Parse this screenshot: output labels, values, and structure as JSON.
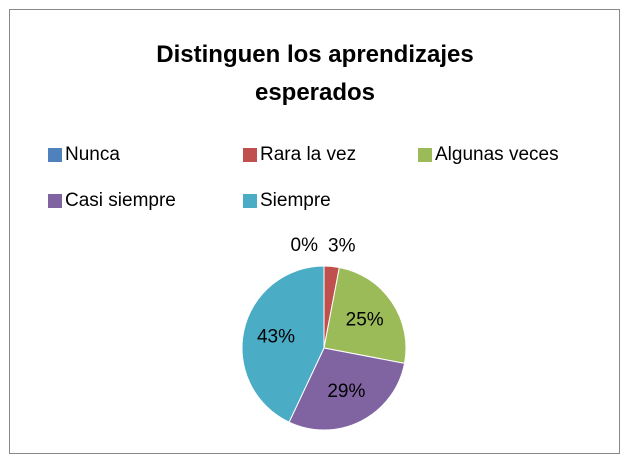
{
  "chart_data": {
    "type": "pie",
    "title": "Distinguen los aprendizajes esperados",
    "categories": [
      "Nunca",
      "Rara la vez",
      "Algunas veces",
      "Casi siempre",
      "Siempre"
    ],
    "values": [
      0,
      3,
      25,
      29,
      43
    ],
    "value_labels": [
      "0%",
      "3%",
      "25%",
      "29%",
      "43%"
    ],
    "colors": [
      "#4f81bd",
      "#c0504d",
      "#9bbb59",
      "#8064a2",
      "#4bacc6"
    ],
    "legend": "top"
  }
}
